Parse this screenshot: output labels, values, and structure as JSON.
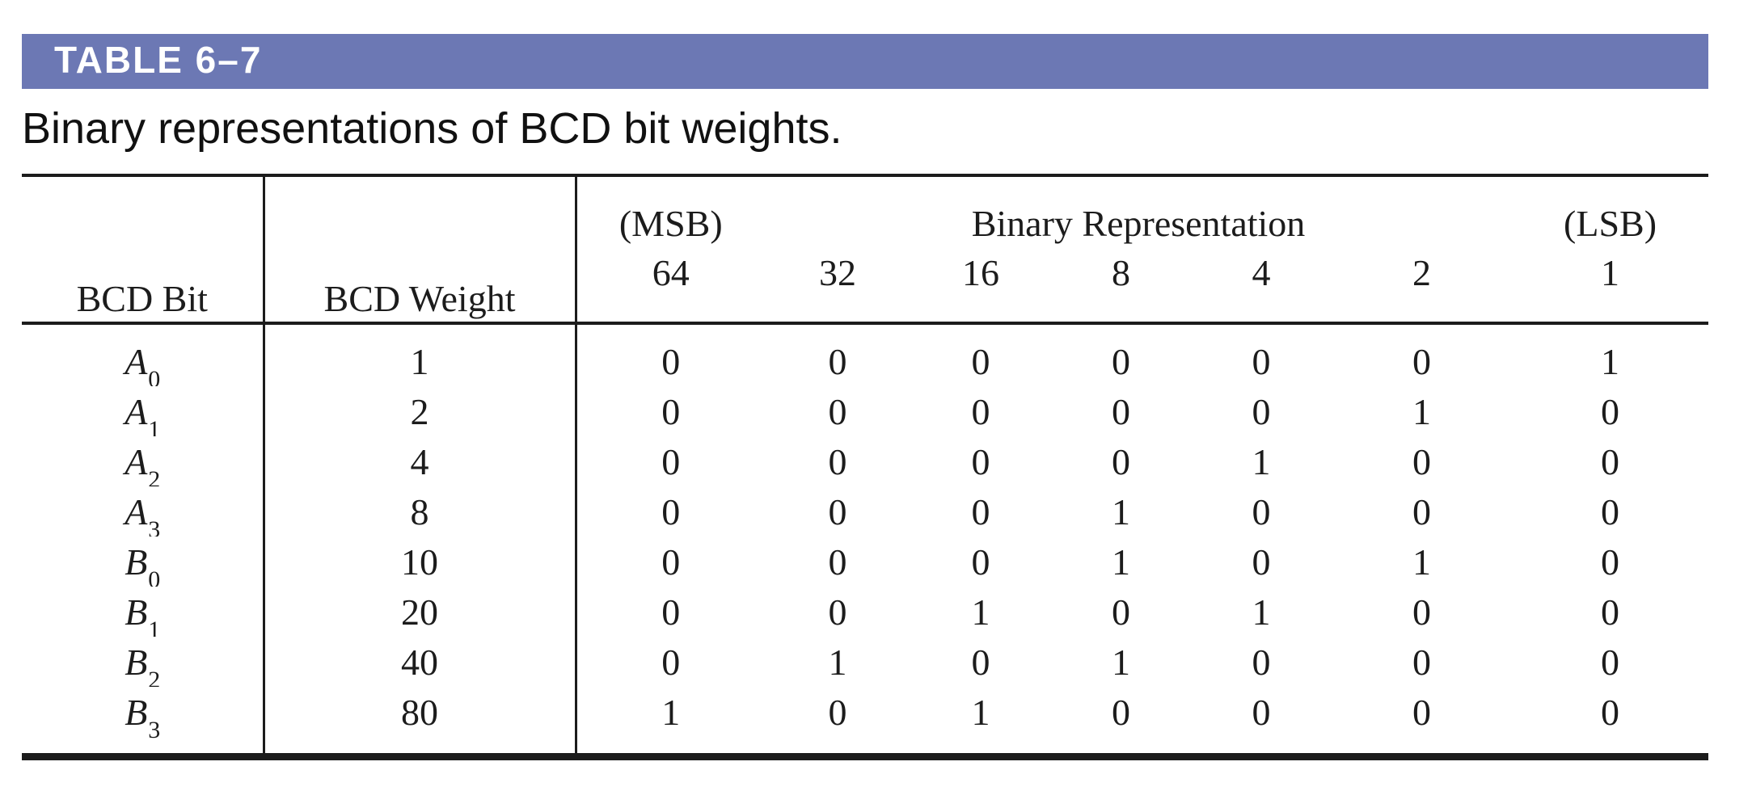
{
  "header_bar": {
    "title": "TABLE 6–7",
    "bg_color": "#6c78b4",
    "text_color": "#ffffff"
  },
  "caption": "Binary representations of BCD bit weights.",
  "table": {
    "col1_header": "BCD Bit",
    "col2_header": "BCD Weight",
    "msb_label": "(MSB)",
    "binary_rep_label": "Binary Representation",
    "lsb_label": "(LSB)",
    "bit_weights": [
      "64",
      "32",
      "16",
      "8",
      "4",
      "2",
      "1"
    ],
    "rows": [
      {
        "bit_base": "A",
        "bit_sub": "0",
        "weight": "1",
        "bits": [
          "0",
          "0",
          "0",
          "0",
          "0",
          "0",
          "1"
        ]
      },
      {
        "bit_base": "A",
        "bit_sub": "1",
        "weight": "2",
        "bits": [
          "0",
          "0",
          "0",
          "0",
          "0",
          "1",
          "0"
        ]
      },
      {
        "bit_base": "A",
        "bit_sub": "2",
        "weight": "4",
        "bits": [
          "0",
          "0",
          "0",
          "0",
          "1",
          "0",
          "0"
        ]
      },
      {
        "bit_base": "A",
        "bit_sub": "3",
        "weight": "8",
        "bits": [
          "0",
          "0",
          "0",
          "1",
          "0",
          "0",
          "0"
        ]
      },
      {
        "bit_base": "B",
        "bit_sub": "0",
        "weight": "10",
        "bits": [
          "0",
          "0",
          "0",
          "1",
          "0",
          "1",
          "0"
        ]
      },
      {
        "bit_base": "B",
        "bit_sub": "1",
        "weight": "20",
        "bits": [
          "0",
          "0",
          "1",
          "0",
          "1",
          "0",
          "0"
        ]
      },
      {
        "bit_base": "B",
        "bit_sub": "2",
        "weight": "40",
        "bits": [
          "0",
          "1",
          "0",
          "1",
          "0",
          "0",
          "0"
        ]
      },
      {
        "bit_base": "B",
        "bit_sub": "3",
        "weight": "80",
        "bits": [
          "1",
          "0",
          "1",
          "0",
          "0",
          "0",
          "0"
        ]
      }
    ]
  }
}
